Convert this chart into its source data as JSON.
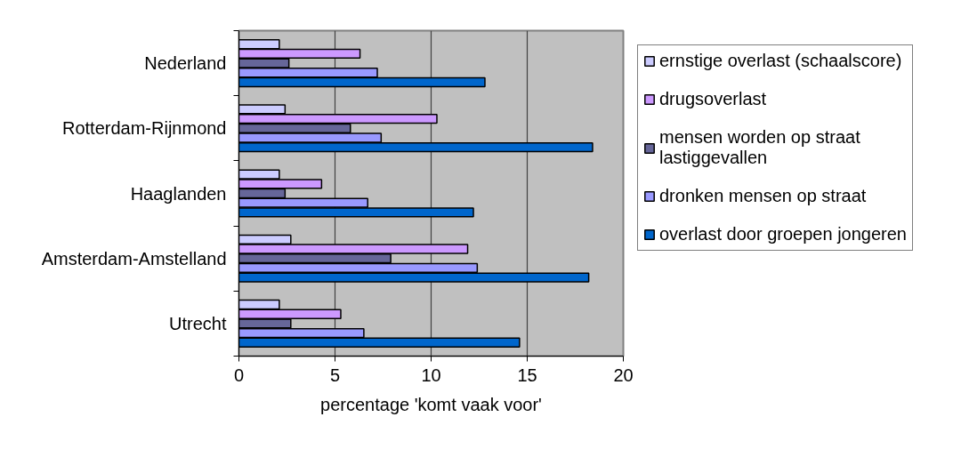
{
  "chart_data": {
    "type": "bar",
    "orientation": "horizontal",
    "categories": [
      "Nederland",
      "Rotterdam-Rijnmond",
      "Haaglanden",
      "Amsterdam-Amstelland",
      "Utrecht"
    ],
    "series": [
      {
        "name": "ernstige overlast (schaalscore)",
        "color": "#ccccff",
        "values": [
          2.1,
          2.4,
          2.1,
          2.7,
          2.1
        ]
      },
      {
        "name": "drugsoverlast",
        "color": "#cc99ff",
        "values": [
          6.3,
          10.3,
          4.3,
          11.9,
          5.3
        ]
      },
      {
        "name": "mensen worden op straat lastiggevallen",
        "color": "#666699",
        "values": [
          2.6,
          5.8,
          2.4,
          7.9,
          2.7
        ]
      },
      {
        "name": "dronken mensen op straat",
        "color": "#9999ff",
        "values": [
          7.2,
          7.4,
          6.7,
          12.4,
          6.5
        ]
      },
      {
        "name": "overlast door groepen jongeren",
        "color": "#0066cc",
        "values": [
          12.8,
          18.4,
          12.2,
          18.2,
          14.6
        ]
      }
    ],
    "xlim": [
      0,
      20
    ],
    "xticks": [
      0,
      5,
      10,
      15,
      20
    ],
    "xlabel": "percentage 'komt vaak voor'",
    "grid": "x",
    "legend": "right"
  }
}
